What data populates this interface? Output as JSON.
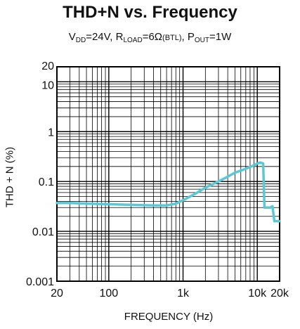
{
  "chart_data": {
    "type": "line",
    "title": "THD+N vs. Frequency",
    "subtitle_parts": {
      "vdd_v": "V",
      "vdd_sub": "DD",
      "vdd_value": "=24V, ",
      "rload_r": "R",
      "rload_sub": "LOAD",
      "rload_value": "=6Ω",
      "rload_note": "(BTL)",
      "sep": ", ",
      "pout_p": "P",
      "pout_sub": "OUT",
      "pout_value": "=1W"
    },
    "xlabel": "FREQUENCY (Hz)",
    "ylabel": "THD + N (%)",
    "x_scale": "log",
    "y_scale": "log",
    "xlim": [
      20,
      20000
    ],
    "ylim": [
      0.001,
      20
    ],
    "x_ticks": [
      {
        "value": 20,
        "label": "20"
      },
      {
        "value": 100,
        "label": "100"
      },
      {
        "value": 1000,
        "label": "1k"
      },
      {
        "value": 10000,
        "label": "10k"
      },
      {
        "value": 20000,
        "label": "20k"
      }
    ],
    "y_ticks": [
      {
        "value": 0.001,
        "label": "0.001"
      },
      {
        "value": 0.01,
        "label": "0.01"
      },
      {
        "value": 0.1,
        "label": "0.1"
      },
      {
        "value": 1,
        "label": "1"
      },
      {
        "value": 10,
        "label": "10"
      },
      {
        "value": 20,
        "label": "20"
      }
    ],
    "grid": true,
    "series": [
      {
        "color": "#5bc8d6",
        "points": [
          [
            20,
            0.037
          ],
          [
            30,
            0.037
          ],
          [
            50,
            0.036
          ],
          [
            100,
            0.035
          ],
          [
            200,
            0.034
          ],
          [
            400,
            0.033
          ],
          [
            600,
            0.033
          ],
          [
            800,
            0.036
          ],
          [
            1000,
            0.042
          ],
          [
            1500,
            0.058
          ],
          [
            2000,
            0.075
          ],
          [
            3000,
            0.1
          ],
          [
            4000,
            0.125
          ],
          [
            5000,
            0.15
          ],
          [
            7000,
            0.18
          ],
          [
            9000,
            0.21
          ],
          [
            10000,
            0.23
          ],
          [
            11000,
            0.24
          ],
          [
            12000,
            0.23
          ],
          [
            12500,
            0.03
          ],
          [
            15000,
            0.03
          ],
          [
            16000,
            0.032
          ],
          [
            17000,
            0.016
          ],
          [
            20000,
            0.016
          ]
        ]
      }
    ]
  }
}
